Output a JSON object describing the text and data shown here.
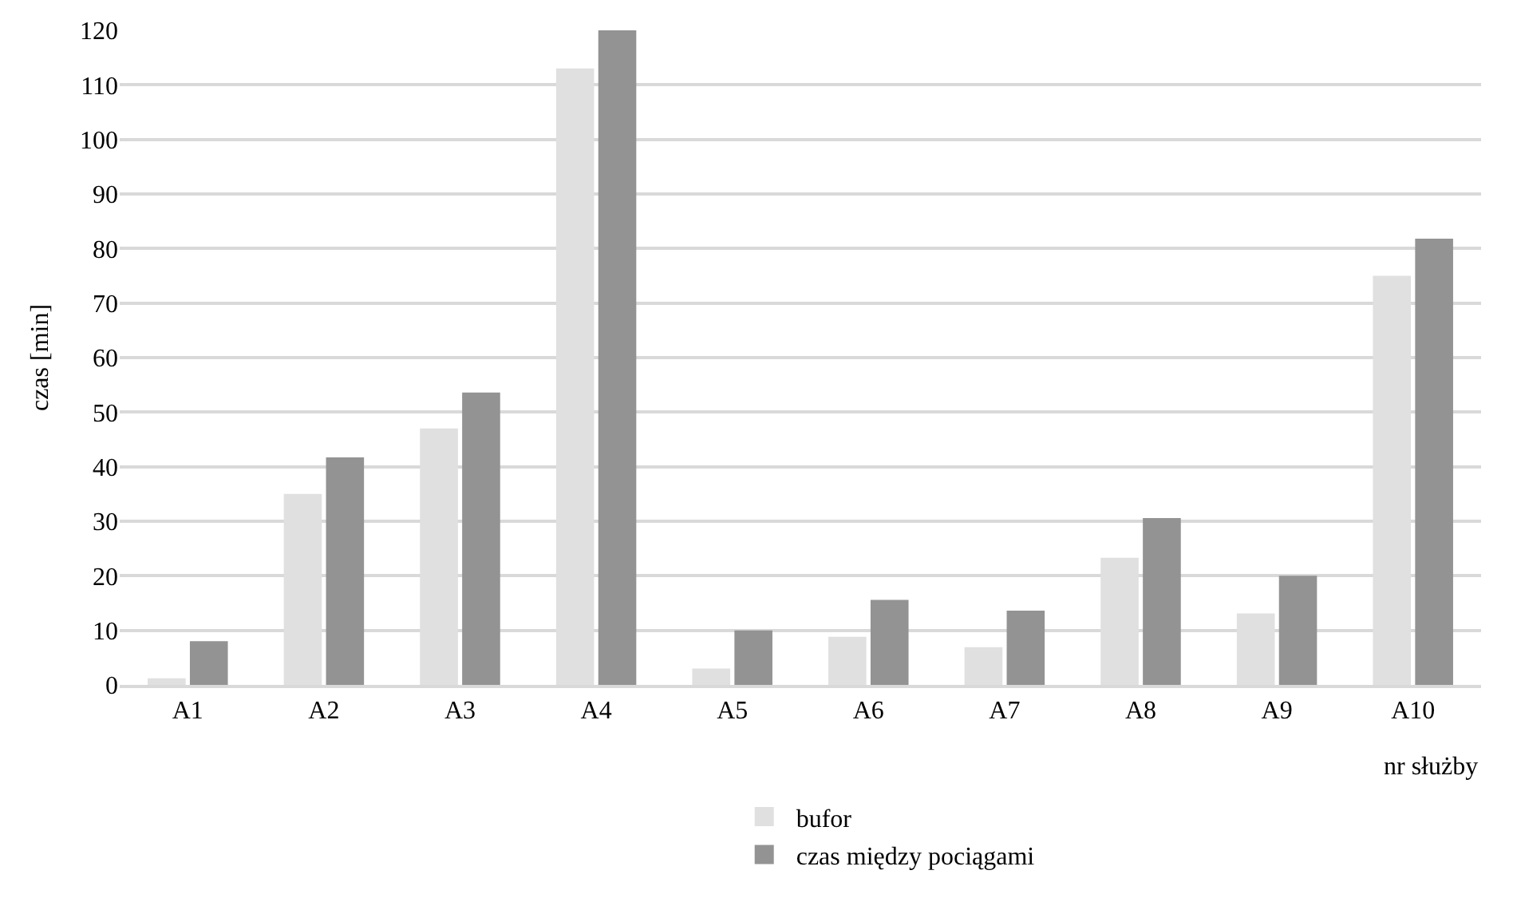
{
  "chart_data": {
    "type": "bar",
    "xlabel": "nr służby",
    "ylabel": "czas [min]",
    "categories": [
      "A1",
      "A2",
      "A3",
      "A4",
      "A5",
      "A6",
      "A7",
      "A8",
      "A9",
      "A10"
    ],
    "series": [
      {
        "name": "bufor",
        "color": "#e0e0e0",
        "values": [
          1.2,
          35,
          47,
          113,
          3,
          8.8,
          6.9,
          23.3,
          13.1,
          75
        ]
      },
      {
        "name": "czas między pociągami",
        "color": "#939393",
        "values": [
          8,
          41.7,
          53.6,
          120,
          10,
          15.6,
          13.6,
          30.6,
          20,
          81.8
        ]
      }
    ],
    "ylim": [
      0,
      120
    ],
    "yticks": [
      0,
      10,
      20,
      30,
      40,
      50,
      60,
      70,
      80,
      90,
      100,
      110,
      120
    ],
    "grid": "y",
    "legend": "bottom"
  }
}
